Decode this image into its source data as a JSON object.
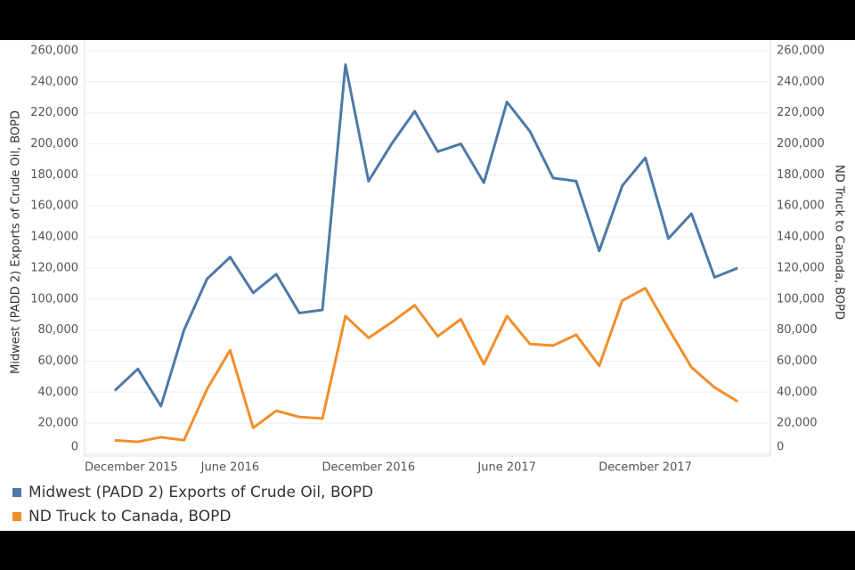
{
  "chart_data": {
    "type": "line",
    "y_label": "Midwest (PADD 2) Exports of Crude Oil, BOPD",
    "y2_label": "ND Truck to Canada, BOPD",
    "categories": [
      "December 2015",
      null,
      null,
      null,
      null,
      null,
      "June 2016",
      null,
      null,
      null,
      null,
      null,
      "December 2016",
      null,
      null,
      null,
      null,
      null,
      "June 2017",
      null,
      null,
      null,
      null,
      null,
      "December 2017",
      null,
      null,
      null,
      null
    ],
    "series": [
      {
        "name": "Midwest (PADD 2) Exports of Crude Oil, BOPD",
        "color": "#4e79a7",
        "values": [
          null,
          41000,
          55000,
          31000,
          80000,
          113000,
          127000,
          104000,
          116000,
          91000,
          93000,
          251000,
          176000,
          200000,
          221000,
          195000,
          200000,
          175000,
          227000,
          208000,
          178000,
          176000,
          131000,
          173000,
          191000,
          139000,
          155000,
          114000,
          120000
        ]
      },
      {
        "name": "ND Truck to Canada, BOPD",
        "color": "#f28e2b",
        "axis": "y2",
        "values": [
          null,
          9000,
          8000,
          11000,
          9000,
          42000,
          67000,
          17000,
          28000,
          24000,
          23000,
          89000,
          75000,
          85000,
          96000,
          76000,
          87000,
          58000,
          89000,
          71000,
          70000,
          77000,
          57000,
          99000,
          107000,
          81000,
          56000,
          43000,
          34000
        ]
      }
    ],
    "ylim": [
      0,
      260000
    ],
    "yticks": [
      {
        "value": 0,
        "label": "0"
      },
      {
        "value": 20000,
        "label": "20,000"
      },
      {
        "value": 40000,
        "label": "40,000"
      },
      {
        "value": 60000,
        "label": "60,000"
      },
      {
        "value": 80000,
        "label": "80,000"
      },
      {
        "value": 100000,
        "label": "100,000"
      },
      {
        "value": 120000,
        "label": "120,000"
      },
      {
        "value": 140000,
        "label": "140,000"
      },
      {
        "value": 160000,
        "label": "160,000"
      },
      {
        "value": 180000,
        "label": "180,000"
      },
      {
        "value": 200000,
        "label": "200,000"
      },
      {
        "value": 220000,
        "label": "220,000"
      },
      {
        "value": 240000,
        "label": "240,000"
      },
      {
        "value": 260000,
        "label": "260,000"
      }
    ],
    "y2lim": [
      0,
      260000
    ],
    "y2ticks": [
      {
        "value": 0,
        "label": "0"
      },
      {
        "value": 20000,
        "label": "20,000"
      },
      {
        "value": 40000,
        "label": "40,000"
      },
      {
        "value": 60000,
        "label": "60,000"
      },
      {
        "value": 80000,
        "label": "80,000"
      },
      {
        "value": 100000,
        "label": "100,000"
      },
      {
        "value": 120000,
        "label": "120,000"
      },
      {
        "value": 140000,
        "label": "140,000"
      },
      {
        "value": 160000,
        "label": "160,000"
      },
      {
        "value": 180000,
        "label": "180,000"
      },
      {
        "value": 200000,
        "label": "200,000"
      },
      {
        "value": 220000,
        "label": "220,000"
      },
      {
        "value": 240000,
        "label": "240,000"
      },
      {
        "value": 260000,
        "label": "260,000"
      }
    ],
    "grid": true,
    "legend": "bottom-left"
  }
}
